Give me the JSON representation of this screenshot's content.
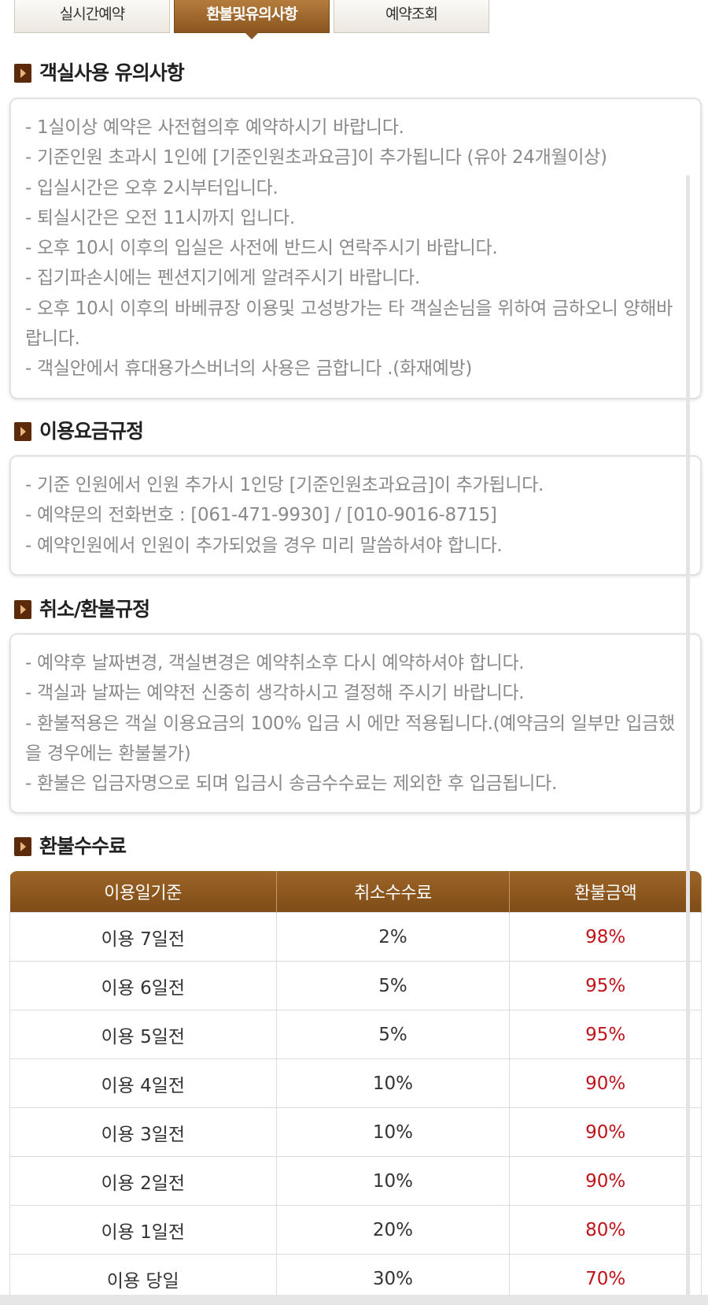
{
  "tabs": [
    "실시간예약",
    "환불및유의사항",
    "예약조회"
  ],
  "active_tab": 1,
  "sections": [
    {
      "heading": "객실사용 유의사항",
      "items": [
        "- 1실이상 예약은 사전협의후 예약하시기 바랍니다.",
        "- 기준인원 초과시 1인에 [기준인원초과요금]이 추가됩니다 (유아 24개월이상)",
        "- 입실시간은 오후 2시부터입니다.",
        "- 퇴실시간은 오전 11시까지 입니다.",
        "- 오후 10시 이후의 입실은 사전에 반드시 연락주시기 바랍니다.",
        "- 집기파손시에는 펜션지기에게 알려주시기 바랍니다.",
        "- 오후 10시 이후의 바베큐장 이용및 고성방가는 타 객실손님을 위하여 금하오니 양해바랍니다.",
        "- 객실안에서 휴대용가스버너의 사용은 금합니다 .(화재예방)"
      ]
    },
    {
      "heading": "이용요금규정",
      "items": [
        "- 기준 인원에서 인원 추가시 1인당 [기준인원초과요금]이 추가됩니다.",
        "- 예약문의 전화번호 : [061-471-9930] / [010-9016-8715]",
        "- 예약인원에서 인원이 추가되었을 경우 미리 말씀하셔야 합니다."
      ]
    },
    {
      "heading": "취소/환불규정",
      "items": [
        "- 예약후 날짜변경, 객실변경은 예약취소후 다시 예약하셔야 합니다.",
        "- 객실과 날짜는 예약전 신중히 생각하시고 결정해 주시기 바랍니다.",
        "- 환불적용은 객실 이용요금의 100% 입금 시 에만 적용됩니다.(예약금의 일부만 입금했을 경우에는 환불불가)",
        "- 환불은 입금자명으로 되며 입금시 송금수수료는 제외한 후 입금됩니다."
      ]
    }
  ],
  "refund_table": {
    "heading": "환불수수료",
    "columns": [
      "이용일기준",
      "취소수수료",
      "환불금액"
    ],
    "rows": [
      [
        "이용 7일전",
        "2%",
        "98%"
      ],
      [
        "이용 6일전",
        "5%",
        "95%"
      ],
      [
        "이용 5일전",
        "5%",
        "95%"
      ],
      [
        "이용 4일전",
        "10%",
        "90%"
      ],
      [
        "이용 3일전",
        "10%",
        "90%"
      ],
      [
        "이용 2일전",
        "10%",
        "90%"
      ],
      [
        "이용 1일전",
        "20%",
        "80%"
      ],
      [
        "이용 당일",
        "30%",
        "70%"
      ]
    ]
  }
}
